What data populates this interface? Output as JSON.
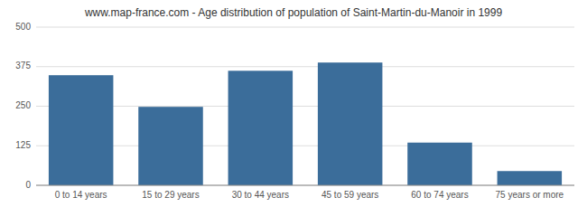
{
  "chart_data": {
    "type": "bar",
    "title": "www.map-france.com - Age distribution of population of Saint-Martin-du-Manoir in 1999",
    "categories": [
      "0 to 14 years",
      "15 to 29 years",
      "30 to 44 years",
      "45 to 59 years",
      "60 to 74 years",
      "75 years or more"
    ],
    "values": [
      348,
      248,
      362,
      388,
      135,
      45
    ],
    "color": "#3b6d9a",
    "ylim": [
      0,
      500
    ],
    "yticks": [
      0,
      125,
      250,
      375,
      500
    ],
    "grid": true
  }
}
